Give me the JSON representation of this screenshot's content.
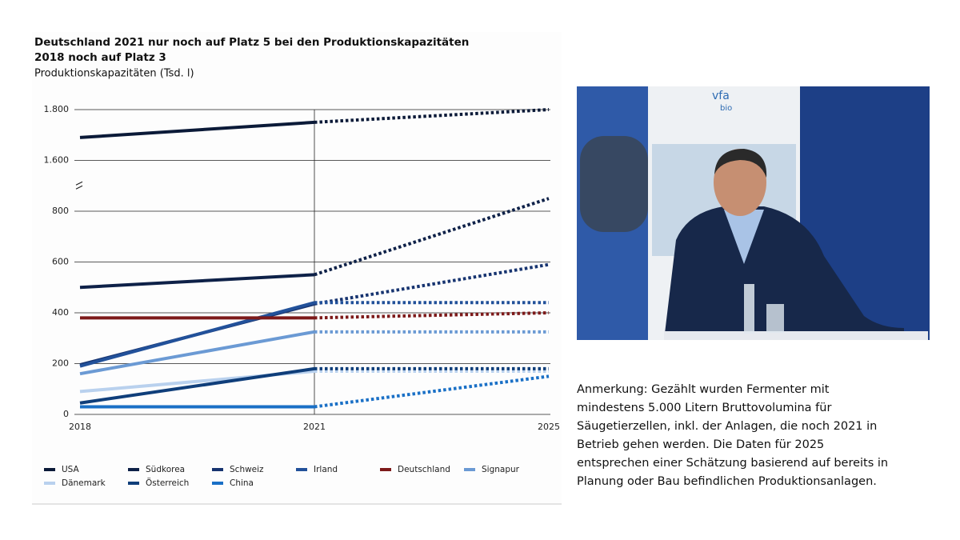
{
  "chart_data": {
    "type": "line",
    "title": "Deutschland 2021 nur noch auf Platz 5 bei den Produktionskapazitäten",
    "subtitle": "2018 noch auf Platz 3",
    "y_label": "Produktionskapazitäten (Tsd. l)",
    "categories": [
      "2018",
      "2021",
      "2025"
    ],
    "series": [
      {
        "name": "USA",
        "color": "#0b1a38",
        "values": [
          1690,
          1750,
          1800
        ]
      },
      {
        "name": "Südkorea",
        "color": "#0e2148",
        "values": [
          500,
          550,
          850
        ]
      },
      {
        "name": "Schweiz",
        "color": "#173470",
        "values": [
          195,
          435,
          590
        ]
      },
      {
        "name": "Irland",
        "color": "#22519a",
        "values": [
          190,
          440,
          440
        ]
      },
      {
        "name": "Deutschland",
        "color": "#7d1a1a",
        "values": [
          380,
          380,
          400
        ]
      },
      {
        "name": "Signapur",
        "color": "#6b9ad4",
        "values": [
          160,
          325,
          325
        ]
      },
      {
        "name": "Dänemark",
        "color": "#b9d1ee",
        "values": [
          90,
          170,
          170
        ]
      },
      {
        "name": "Österreich",
        "color": "#0f3e7a",
        "values": [
          45,
          180,
          180
        ]
      },
      {
        "name": "China",
        "color": "#1a70c6",
        "values": [
          30,
          30,
          150
        ]
      }
    ],
    "ylim": [
      0,
      1800
    ],
    "axis_break": [
      900,
      1500
    ],
    "yticks": [
      0,
      200,
      400,
      600,
      800,
      {
        "value": 1600,
        "label": "1.600"
      },
      {
        "value": 1800,
        "label": "1.800"
      }
    ],
    "grid": true,
    "forecast_from": "2021"
  },
  "note": "Anmerkung: Gezählt wurden Fermenter mit mindestens 5.000 Litern Bruttovolumina für Säugetierzellen, inkl. der Anlagen, die noch 2021 in Betrieb gehen werden. Die Daten für 2025 entsprechen einer Schätzung basierend auf bereits in Planung oder Bau befindlichen Produktionsanlagen.",
  "photo": {
    "logo": "vfa",
    "logo_sub": "bio"
  }
}
